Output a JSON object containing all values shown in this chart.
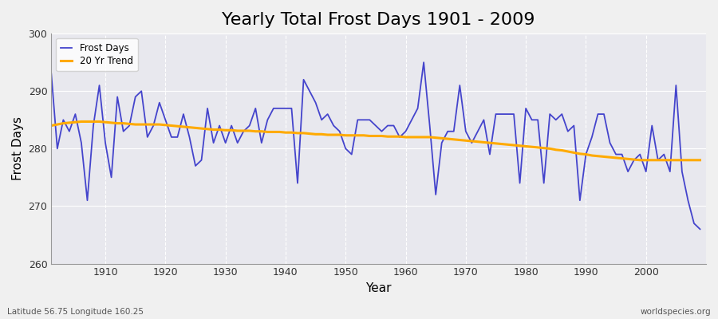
{
  "title": "Yearly Total Frost Days 1901 - 2009",
  "xlabel": "Year",
  "ylabel": "Frost Days",
  "subtitle_left": "Latitude 56.75 Longitude 160.25",
  "subtitle_right": "worldspecies.org",
  "years": [
    1901,
    1902,
    1903,
    1904,
    1905,
    1906,
    1907,
    1908,
    1909,
    1910,
    1911,
    1912,
    1913,
    1914,
    1915,
    1916,
    1917,
    1918,
    1919,
    1920,
    1921,
    1922,
    1923,
    1924,
    1925,
    1926,
    1927,
    1928,
    1929,
    1930,
    1931,
    1932,
    1933,
    1934,
    1935,
    1936,
    1937,
    1938,
    1939,
    1940,
    1941,
    1942,
    1943,
    1944,
    1945,
    1946,
    1947,
    1948,
    1949,
    1950,
    1951,
    1952,
    1953,
    1954,
    1955,
    1956,
    1957,
    1958,
    1959,
    1960,
    1961,
    1962,
    1963,
    1964,
    1965,
    1966,
    1967,
    1968,
    1969,
    1970,
    1971,
    1972,
    1973,
    1974,
    1975,
    1976,
    1977,
    1978,
    1979,
    1980,
    1981,
    1982,
    1983,
    1984,
    1985,
    1986,
    1987,
    1988,
    1989,
    1990,
    1991,
    1992,
    1993,
    1994,
    1995,
    1996,
    1997,
    1998,
    1999,
    2000,
    2001,
    2002,
    2003,
    2004,
    2005,
    2006,
    2007,
    2008,
    2009
  ],
  "frost_days": [
    293,
    280,
    285,
    283,
    286,
    281,
    271,
    284,
    291,
    281,
    275,
    289,
    283,
    284,
    289,
    290,
    282,
    284,
    288,
    285,
    282,
    282,
    286,
    282,
    277,
    278,
    287,
    281,
    284,
    281,
    284,
    281,
    283,
    284,
    287,
    281,
    285,
    287,
    287,
    287,
    287,
    274,
    292,
    290,
    288,
    285,
    286,
    284,
    283,
    280,
    279,
    285,
    285,
    285,
    284,
    283,
    284,
    284,
    282,
    283,
    285,
    287,
    295,
    284,
    272,
    281,
    283,
    283,
    291,
    283,
    281,
    283,
    285,
    279,
    286,
    286,
    286,
    286,
    274,
    287,
    285,
    285,
    274,
    286,
    285,
    286,
    283,
    284,
    271,
    279,
    282,
    286,
    286,
    281,
    279,
    279,
    276,
    278,
    279,
    276,
    284,
    278,
    279,
    276,
    291,
    276,
    271,
    267,
    266
  ],
  "trend_years": [
    1901,
    1902,
    1903,
    1904,
    1905,
    1906,
    1907,
    1908,
    1909,
    1910,
    1911,
    1912,
    1913,
    1914,
    1915,
    1916,
    1917,
    1918,
    1919,
    1920,
    1921,
    1922,
    1923,
    1924,
    1925,
    1926,
    1927,
    1928,
    1929,
    1930,
    1931,
    1932,
    1933,
    1934,
    1935,
    1936,
    1937,
    1938,
    1939,
    1940,
    1941,
    1942,
    1943,
    1944,
    1945,
    1946,
    1947,
    1948,
    1949,
    1950,
    1951,
    1952,
    1953,
    1954,
    1955,
    1956,
    1957,
    1958,
    1959,
    1960,
    1961,
    1962,
    1963,
    1964,
    1965,
    1966,
    1967,
    1968,
    1969,
    1970,
    1971,
    1972,
    1973,
    1974,
    1975,
    1976,
    1977,
    1978,
    1979,
    1980,
    1981,
    1982,
    1983,
    1984,
    1985,
    1986,
    1987,
    1988,
    1989,
    1990,
    1991,
    1992,
    1993,
    1994,
    1995,
    1996,
    1997,
    1998,
    1999,
    2000,
    2001,
    2002,
    2003,
    2004,
    2005,
    2006,
    2007,
    2008,
    2009
  ],
  "trend_values": [
    284.0,
    284.2,
    284.4,
    284.5,
    284.6,
    284.7,
    284.7,
    284.7,
    284.7,
    284.6,
    284.5,
    284.4,
    284.4,
    284.3,
    284.2,
    284.2,
    284.2,
    284.2,
    284.2,
    284.1,
    284.0,
    283.9,
    283.8,
    283.7,
    283.6,
    283.5,
    283.4,
    283.3,
    283.3,
    283.2,
    283.2,
    283.1,
    283.1,
    283.1,
    283.0,
    283.0,
    282.9,
    282.9,
    282.9,
    282.8,
    282.8,
    282.7,
    282.7,
    282.6,
    282.5,
    282.5,
    282.4,
    282.4,
    282.4,
    282.3,
    282.3,
    282.3,
    282.3,
    282.2,
    282.2,
    282.2,
    282.1,
    282.1,
    282.1,
    282.0,
    282.0,
    282.0,
    282.0,
    282.0,
    281.9,
    281.8,
    281.7,
    281.6,
    281.5,
    281.4,
    281.3,
    281.2,
    281.1,
    281.0,
    280.9,
    280.8,
    280.7,
    280.6,
    280.5,
    280.4,
    280.3,
    280.2,
    280.1,
    280.0,
    279.8,
    279.7,
    279.5,
    279.3,
    279.1,
    279.0,
    278.8,
    278.7,
    278.6,
    278.5,
    278.4,
    278.3,
    278.2,
    278.1,
    278.0,
    278.0,
    278.0,
    278.0,
    278.0,
    278.0,
    278.0,
    278.0,
    278.0,
    278.0,
    278.0
  ],
  "line_color": "#4444cc",
  "trend_color": "#ffaa00",
  "bg_color": "#f0f0f0",
  "plot_bg_color": "#e8e8ee",
  "ylim": [
    260,
    300
  ],
  "yticks": [
    260,
    270,
    280,
    290,
    300
  ],
  "xlim": [
    1901,
    2010
  ],
  "xticks": [
    1910,
    1920,
    1930,
    1940,
    1950,
    1960,
    1970,
    1980,
    1990,
    2000
  ],
  "legend_labels": [
    "Frost Days",
    "20 Yr Trend"
  ],
  "title_fontsize": 16,
  "axis_label_fontsize": 11,
  "tick_fontsize": 9
}
